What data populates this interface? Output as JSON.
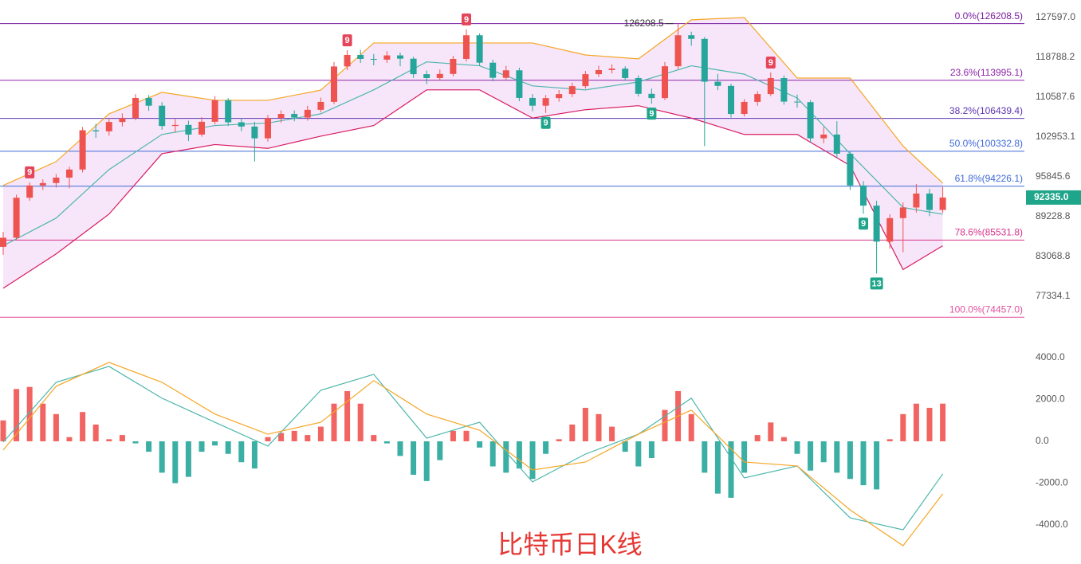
{
  "chart_data": {
    "type": "candlestick",
    "title": "比特币日K线",
    "log_scale": true,
    "ylim": [
      72180,
      131680
    ],
    "yticks": [
      {
        "value": 127597,
        "label": "127597.0"
      },
      118788.2,
      110587.6,
      102953.1,
      95845.6,
      89228.8,
      83068.8,
      77334.1
    ],
    "up_color": "#ef5350",
    "down_color": "#26a69a",
    "ohlc": [
      [
        84500,
        86800,
        83300,
        85900
      ],
      [
        85900,
        92800,
        85600,
        92300
      ],
      [
        92300,
        94900,
        91800,
        94360
      ],
      [
        94360,
        95400,
        93600,
        94770
      ],
      [
        94770,
        96300,
        94000,
        95700
      ],
      [
        95700,
        97600,
        93900,
        97100
      ],
      [
        97100,
        104800,
        96600,
        104200
      ],
      [
        104200,
        105400,
        102800,
        104000
      ],
      [
        104000,
        106500,
        103200,
        105760
      ],
      [
        105760,
        107400,
        104900,
        106500
      ],
      [
        106500,
        111200,
        106100,
        110430
      ],
      [
        110430,
        111000,
        107900,
        108900
      ],
      [
        108900,
        109600,
        104300,
        105000
      ],
      [
        105000,
        106300,
        103800,
        105200
      ],
      [
        105200,
        106000,
        102200,
        103400
      ],
      [
        103400,
        106700,
        103000,
        105800
      ],
      [
        105800,
        110800,
        105300,
        110000
      ],
      [
        110000,
        110400,
        105000,
        105700
      ],
      [
        105700,
        106500,
        104000,
        104900
      ],
      [
        104900,
        105800,
        98500,
        102700
      ],
      [
        102700,
        107100,
        102100,
        106500
      ],
      [
        106500,
        108000,
        105600,
        107300
      ],
      [
        107300,
        108000,
        105900,
        106600
      ],
      [
        106600,
        108900,
        106000,
        108100
      ],
      [
        108100,
        110500,
        107600,
        109650
      ],
      [
        109650,
        117800,
        109200,
        116860
      ],
      [
        116860,
        120300,
        116100,
        119300
      ],
      [
        119300,
        120400,
        117600,
        118450
      ],
      [
        118450,
        119500,
        117100,
        118300
      ],
      [
        118300,
        120100,
        117600,
        119200
      ],
      [
        119200,
        119800,
        116900,
        118500
      ],
      [
        118500,
        118900,
        114500,
        115250
      ],
      [
        115250,
        116000,
        113200,
        114450
      ],
      [
        114450,
        116200,
        113900,
        115300
      ],
      [
        115300,
        119100,
        114800,
        118450
      ],
      [
        118450,
        124900,
        117900,
        123600
      ],
      [
        123600,
        124000,
        117000,
        117650
      ],
      [
        117650,
        118300,
        113800,
        114500
      ],
      [
        114500,
        117000,
        113900,
        116050
      ],
      [
        116050,
        116600,
        109800,
        110430
      ],
      [
        110430,
        111200,
        107800,
        108900
      ],
      [
        108900,
        111000,
        107500,
        110400
      ],
      [
        110400,
        112000,
        109700,
        111200
      ],
      [
        111200,
        113500,
        110600,
        112800
      ],
      [
        112800,
        115900,
        112300,
        115250
      ],
      [
        115250,
        117000,
        114700,
        116100
      ],
      [
        116100,
        117300,
        115400,
        116400
      ],
      [
        116400,
        116900,
        113900,
        114450
      ],
      [
        114450,
        115000,
        110700,
        111250
      ],
      [
        111250,
        112300,
        109300,
        110400
      ],
      [
        110400,
        117800,
        110000,
        116900
      ],
      [
        116900,
        126208.5,
        116300,
        123600
      ],
      [
        123600,
        124400,
        121300,
        122800
      ],
      [
        122800,
        123200,
        101280,
        113700
      ],
      [
        113700,
        115300,
        112000,
        112850
      ],
      [
        112850,
        113300,
        106600,
        107300
      ],
      [
        107300,
        110200,
        106800,
        109650
      ],
      [
        109650,
        111800,
        108900,
        111200
      ],
      [
        111200,
        115600,
        110800,
        114450
      ],
      [
        114450,
        115000,
        109100,
        109700
      ],
      [
        109700,
        111100,
        108500,
        109600
      ],
      [
        109600,
        110000,
        101900,
        102700
      ],
      [
        102700,
        104800,
        101800,
        103400
      ],
      [
        103400,
        105900,
        99100,
        99900
      ],
      [
        99900,
        100400,
        93600,
        94360
      ],
      [
        94360,
        95100,
        89700,
        91000
      ],
      [
        91000,
        91800,
        80545,
        85300
      ],
      [
        85300,
        89600,
        84200,
        88980
      ],
      [
        88980,
        91500,
        83700,
        90700
      ],
      [
        90700,
        94600,
        89900,
        93000
      ],
      [
        93000,
        93800,
        89300,
        90300
      ],
      [
        90300,
        94100,
        89800,
        92335
      ]
    ],
    "band_fill": "#f3dcf6",
    "bands": [
      {
        "color": "#f5a623",
        "x": [
          0,
          4,
          8,
          12,
          16,
          20,
          24,
          28,
          32,
          36,
          40,
          44,
          48,
          52,
          56,
          60,
          64,
          68,
          71
        ],
        "values": [
          94360,
          98490,
          107320,
          111550,
          109960,
          109960,
          111990,
          121900,
          121900,
          121900,
          121900,
          119300,
          118470,
          127080,
          127600,
          114450,
          114450,
          101280,
          94770
        ]
      },
      {
        "color": "#4db6ac",
        "x": [
          0,
          4,
          8,
          12,
          16,
          20,
          24,
          28,
          32,
          36,
          40,
          44,
          48,
          52,
          56,
          60,
          64,
          68,
          71
        ],
        "values": [
          84670,
          88980,
          97100,
          103420,
          105090,
          105560,
          107320,
          112040,
          117820,
          117000,
          112850,
          112040,
          113650,
          117000,
          115250,
          110430,
          99900,
          90700,
          89600
        ]
      },
      {
        "color": "#d81b60",
        "x": [
          0,
          4,
          8,
          12,
          16,
          20,
          24,
          28,
          32,
          36,
          40,
          44,
          48,
          52,
          56,
          60,
          64,
          68,
          71
        ],
        "values": [
          78440,
          83440,
          89630,
          99900,
          101560,
          100860,
          103100,
          105090,
          112040,
          112040,
          106500,
          108120,
          108900,
          106500,
          103420,
          103420,
          97790,
          81120,
          84670
        ]
      }
    ],
    "fib_levels": [
      {
        "label": "0.0%(126208.5)",
        "value": 126208.5,
        "color": "#7b1fa2"
      },
      {
        "label": "23.6%(113995.1)",
        "value": 113995.1,
        "color": "#8e24aa"
      },
      {
        "label": "38.2%(106439.4)",
        "value": 106439.4,
        "color": "#5e35b1"
      },
      {
        "label": "50.0%(100332.8)",
        "value": 100332.8,
        "color": "#3f6ad8"
      },
      {
        "label": "61.8%(94226.1)",
        "value": 94226.1,
        "color": "#3f6ad8"
      },
      {
        "label": "78.6%(85531.8)",
        "value": 85531.8,
        "color": "#d6338a"
      },
      {
        "label": "100.0%(74457.0)",
        "value": 74457,
        "color": "#e0529c"
      }
    ],
    "last_price": {
      "value": 92335,
      "label": "92335.0",
      "color": "#1fa58a"
    },
    "high_annotation": 126208.5,
    "markers": [
      {
        "x": 2,
        "text": "9",
        "side": "above",
        "color": "#e5455a"
      },
      {
        "x": 26,
        "text": "9",
        "side": "above",
        "color": "#e5455a"
      },
      {
        "x": 35,
        "text": "9",
        "side": "above",
        "color": "#e5455a"
      },
      {
        "x": 58,
        "text": "9",
        "side": "above",
        "color": "#e5455a"
      },
      {
        "x": 41,
        "text": "9",
        "side": "below",
        "color": "#1fa58a"
      },
      {
        "x": 49,
        "text": "9",
        "side": "below",
        "color": "#1fa58a"
      },
      {
        "x": 65,
        "text": "9",
        "side": "below",
        "color": "#1fa58a"
      },
      {
        "x": 66,
        "text": "13",
        "side": "below",
        "color": "#1fa58a"
      }
    ],
    "macd": {
      "ylim": [
        -5560,
        4720
      ],
      "yticks": [
        {
          "value": 4000,
          "label": "4000.0"
        },
        {
          "value": 2000,
          "label": "2000.0"
        },
        {
          "value": 0,
          "label": "0.0"
        },
        {
          "value": -2000,
          "label": "-2000.0"
        },
        {
          "value": -4000,
          "label": "-4000.0"
        }
      ],
      "up_color": "#ef5350",
      "down_color": "#26a69a",
      "histogram": [
        1000,
        2500,
        2600,
        1800,
        1300,
        200,
        1400,
        800,
        100,
        300,
        -100,
        -500,
        -1500,
        -2000,
        -1700,
        -500,
        -200,
        -600,
        -1000,
        -1300,
        200,
        400,
        500,
        300,
        700,
        1800,
        2400,
        1800,
        300,
        -100,
        -700,
        -1600,
        -1900,
        -900,
        500,
        500,
        -300,
        -1200,
        -1500,
        -1300,
        -1800,
        -600,
        100,
        800,
        1600,
        1300,
        700,
        -500,
        -1200,
        -800,
        1500,
        2400,
        1300,
        -1500,
        -2500,
        -2700,
        -1500,
        300,
        900,
        200,
        -600,
        -1400,
        -1000,
        -1500,
        -1800,
        -2100,
        -2300,
        100,
        1300,
        1800,
        1600,
        1800
      ],
      "lines": [
        {
          "color": "#4db6ac",
          "x": [
            0,
            4,
            8,
            12,
            16,
            20,
            24,
            28,
            32,
            36,
            40,
            44,
            48,
            52,
            56,
            60,
            64,
            68,
            71
          ],
          "values": [
            -40,
            2820,
            3580,
            2060,
            910,
            -230,
            2440,
            3200,
            150,
            910,
            -1940,
            -610,
            340,
            2060,
            -1750,
            -1180,
            -3660,
            -4230,
            -1560
          ]
        },
        {
          "color": "#f5a623",
          "x": [
            0,
            4,
            8,
            12,
            16,
            20,
            24,
            28,
            32,
            36,
            40,
            44,
            48,
            52,
            56,
            60,
            64,
            68,
            71
          ],
          "values": [
            -420,
            2630,
            3770,
            2820,
            1300,
            340,
            910,
            2900,
            1300,
            530,
            -1370,
            -990,
            340,
            1490,
            -990,
            -1180,
            -3280,
            -4990,
            -2510
          ]
        }
      ]
    }
  }
}
